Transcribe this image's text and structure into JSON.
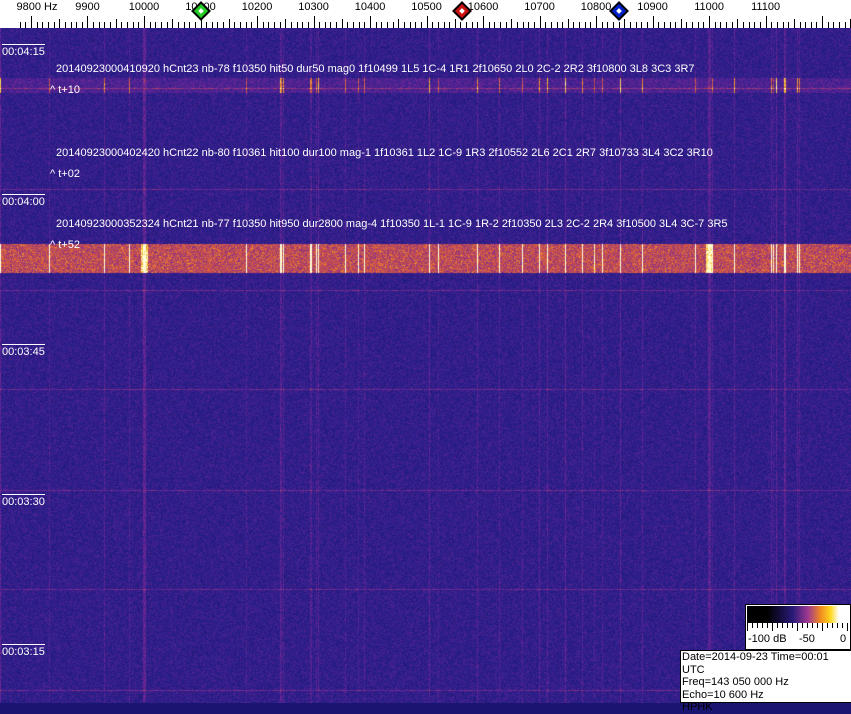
{
  "chart_data": {
    "type": "heatmap",
    "xlabel_unit": "Hz",
    "x_ticks": [
      "9800 Hz",
      "9900",
      "10000",
      "10100",
      "10200",
      "10300",
      "10400",
      "10500",
      "10600",
      "10700",
      "10800",
      "10900",
      "11000",
      "11100"
    ],
    "x_tick_values": [
      9800,
      9900,
      10000,
      10100,
      10200,
      10300,
      10400,
      10500,
      10600,
      10700,
      10800,
      10900,
      11000,
      11100
    ],
    "xlim": [
      9770,
      11250
    ],
    "y_ticks": [
      "00:04:15",
      "00:04:00",
      "00:03:45",
      "00:03:30",
      "00:03:15"
    ],
    "markers": [
      {
        "color": "#22cc22",
        "freq": 10100
      },
      {
        "color": "#cc1111",
        "freq": 10562
      },
      {
        "color": "#0022cc",
        "freq": 10840
      }
    ],
    "strong_lines_hz": [
      10000,
      11000
    ],
    "annotations": [
      {
        "text": "20140923000410920 hCnt23 nb-78 f10350 hit50 dur50 mag0 1f10499 1L5 1C-4 1R1 2f10650 2L0 2C-2 2R2 3f10800 3L8 3C3 3R7",
        "offset": "^ t+10"
      },
      {
        "text": "20140923000402420 hCnt22 nb-80 f10361 hit100 dur100 mag-1 1f10361 1L2 1C-9 1R3 2f10552 2L6 2C1 2R7 3f10733 3L4 3C2 3R10",
        "offset": "^ t+02"
      },
      {
        "text": "20140923000352324 hCnt21 nb-77 f10350 hit950 dur2800 mag-4 1f10350 1L-1 1C-9 1R-2 2f10350 2L3 2C-2 2R4 3f10500 3L4 3C-7 3R5",
        "offset": "^ t+52"
      }
    ],
    "colorbar": {
      "labels": [
        "-100 dB",
        "-50",
        "0"
      ],
      "range_db": [
        -100,
        0
      ]
    }
  },
  "info": {
    "date_line": "Date=2014-09-23 Time=00:01 UTC",
    "freq_line": "Freq=143 050 000 Hz",
    "echo_line": "Echo=10 600 Hz",
    "station": "HPHK"
  }
}
